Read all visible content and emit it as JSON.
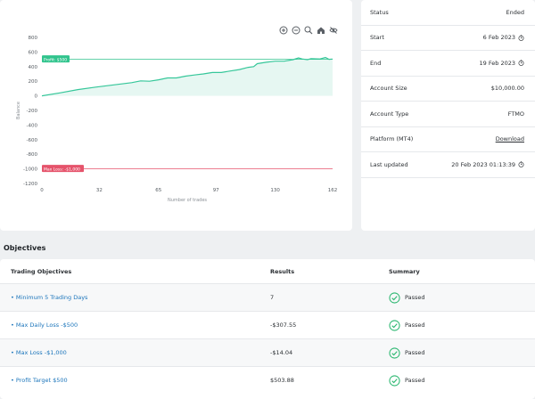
{
  "chart_data": {
    "type": "line",
    "xlabel": "Number of trades",
    "ylabel": "Balance",
    "x_ticks": [
      0,
      32,
      65,
      97,
      130,
      162
    ],
    "y_ticks": [
      800,
      600,
      400,
      200,
      0,
      -200,
      -400,
      -600,
      -800,
      -1000,
      -1200
    ],
    "xlim": [
      0,
      162
    ],
    "ylim": [
      -1200,
      800
    ],
    "profit_line": {
      "label": "Profit: $500",
      "value": 500,
      "color": "#31c48d"
    },
    "loss_line": {
      "label": "Max Loss: -$1,000",
      "value": -1000,
      "color": "#e5536b"
    },
    "series": [
      {
        "color": "#36c79a",
        "fill": "#e6f7f2",
        "x": [
          0,
          10,
          20,
          30,
          40,
          50,
          55,
          60,
          65,
          70,
          75,
          80,
          85,
          90,
          95,
          100,
          105,
          110,
          115,
          118,
          120,
          125,
          130,
          135,
          140,
          143,
          145,
          148,
          150,
          155,
          158,
          160,
          162
        ],
        "values": [
          0,
          40,
          85,
          120,
          150,
          180,
          205,
          200,
          220,
          245,
          245,
          270,
          285,
          300,
          320,
          320,
          340,
          360,
          390,
          400,
          440,
          460,
          475,
          475,
          495,
          520,
          505,
          495,
          510,
          505,
          525,
          500,
          504
        ]
      }
    ]
  },
  "toolbar": {
    "zoom_in": "zoom-in-icon",
    "zoom_out": "zoom-out-icon",
    "zoom": "magnifier-icon",
    "home": "home-icon",
    "pan": "pan-icon"
  },
  "info": [
    {
      "label": "Status",
      "value": "Ended"
    },
    {
      "label": "Start",
      "value": "6 Feb 2023",
      "icon": "clock-icon"
    },
    {
      "label": "End",
      "value": "19 Feb 2023",
      "icon": "clock-icon"
    },
    {
      "label": "Account Size",
      "value": "$10,000.00"
    },
    {
      "label": "Account Type",
      "value": "FTMO"
    },
    {
      "label": "Platform (MT4)",
      "value": "Download",
      "link": true
    },
    {
      "label": "Last updated",
      "value": "20 Feb 2023 01:13:39",
      "icon": "clock-icon"
    }
  ],
  "objectives": {
    "title": "Objectives",
    "headers": [
      "Trading Objectives",
      "Results",
      "Summary"
    ],
    "rows": [
      {
        "name": "Minimum 5 Trading Days",
        "result": "7",
        "summary": "Passed"
      },
      {
        "name": "Max Daily Loss -$500",
        "result": "-$307.55",
        "summary": "Passed"
      },
      {
        "name": "Max Loss -$1,000",
        "result": "-$14.04",
        "summary": "Passed"
      },
      {
        "name": "Profit Target $500",
        "result": "$503.88",
        "summary": "Passed"
      }
    ]
  },
  "colors": {
    "link": "#1b75bb",
    "pass": "#2eb872"
  }
}
